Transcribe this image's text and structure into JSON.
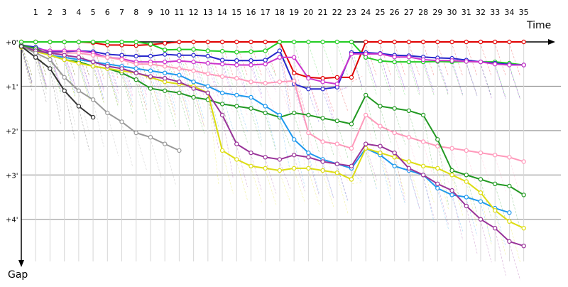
{
  "chart_data": {
    "type": "line",
    "xlabel": "Time",
    "ylabel": "Gap",
    "x_ticks": [
      "1",
      "2",
      "3",
      "4",
      "5",
      "6",
      "7",
      "8",
      "9",
      "10",
      "11",
      "12",
      "13",
      "14",
      "15",
      "16",
      "17",
      "18",
      "19",
      "20",
      "21",
      "22",
      "23",
      "24",
      "25",
      "26",
      "27",
      "28",
      "29",
      "30",
      "31",
      "32",
      "33",
      "34",
      "35"
    ],
    "y_ticks": [
      "+0'",
      "+1'",
      "+2'",
      "+3'",
      "+4'"
    ],
    "y_tick_values": [
      0,
      1,
      2,
      3,
      4
    ],
    "xlim": [
      0,
      36.6
    ],
    "ylim": [
      0,
      4.95
    ],
    "y_inverted": true,
    "grid": true,
    "series": [
      {
        "color": "#e00000",
        "values": [
          0,
          0,
          0,
          0,
          0,
          0.02,
          0.07,
          0.07,
          0.08,
          0.06,
          0.03,
          0,
          0,
          0,
          0,
          0,
          0,
          0,
          0,
          0.7,
          0.8,
          0.82,
          0.8,
          0.8,
          0,
          0,
          0,
          0,
          0,
          0,
          0,
          0,
          0,
          0,
          0,
          0
        ]
      },
      {
        "color": "#22cc22",
        "values": [
          0,
          0,
          0,
          0,
          0,
          0,
          0,
          0,
          0,
          0.05,
          0.18,
          0.17,
          0.17,
          0.2,
          0.21,
          0.23,
          0.22,
          0.2,
          0,
          0,
          0,
          0,
          0,
          0,
          0.35,
          0.43,
          0.45,
          0.45,
          0.45,
          0.44,
          0.45,
          0.44,
          0.45,
          0.45,
          0.48,
          0.52
        ]
      },
      {
        "color": "#2828cc",
        "values": [
          0.07,
          0.12,
          0.23,
          0.22,
          0.2,
          0.22,
          0.28,
          0.3,
          0.32,
          0.32,
          0.28,
          0.3,
          0.3,
          0.32,
          0.41,
          0.42,
          0.42,
          0.41,
          0.2,
          0.95,
          1.06,
          1.06,
          1.02,
          0.24,
          0.24,
          0.26,
          0.3,
          0.31,
          0.34,
          0.36,
          0.37,
          0.41,
          0.45,
          0.48,
          0.51,
          0.52
        ]
      },
      {
        "color": "#cc33cc",
        "values": [
          0.08,
          0.15,
          0.2,
          0.2,
          0.2,
          0.25,
          0.35,
          0.38,
          0.45,
          0.45,
          0.45,
          0.43,
          0.45,
          0.48,
          0.5,
          0.52,
          0.52,
          0.5,
          0.35,
          0.35,
          0.82,
          0.9,
          0.95,
          0.27,
          0.27,
          0.27,
          0.34,
          0.34,
          0.4,
          0.42,
          0.42,
          0.44,
          0.45,
          0.5,
          0.52,
          0.52
        ]
      },
      {
        "color": "#ff99bb",
        "values": [
          0.1,
          0.18,
          0.25,
          0.25,
          0.25,
          0.3,
          0.35,
          0.4,
          0.5,
          0.5,
          0.55,
          0.6,
          0.65,
          0.72,
          0.78,
          0.82,
          0.9,
          0.93,
          0.9,
          0.88,
          2.05,
          2.25,
          2.3,
          2.4,
          1.65,
          1.9,
          2.05,
          2.15,
          2.25,
          2.35,
          2.4,
          2.45,
          2.5,
          2.55,
          2.6,
          2.7
        ]
      },
      {
        "color": "#229922",
        "values": [
          0.07,
          0.15,
          0.3,
          0.4,
          0.45,
          0.55,
          0.6,
          0.7,
          0.85,
          1.05,
          1.1,
          1.15,
          1.25,
          1.3,
          1.4,
          1.45,
          1.5,
          1.6,
          1.7,
          1.6,
          1.65,
          1.72,
          1.78,
          1.85,
          1.2,
          1.45,
          1.5,
          1.55,
          1.65,
          2.2,
          2.9,
          3.0,
          3.1,
          3.2,
          3.25,
          3.45
        ]
      },
      {
        "color": "#1e99ee",
        "values": [
          0.1,
          0.2,
          0.3,
          0.35,
          0.4,
          0.45,
          0.5,
          0.55,
          0.6,
          0.65,
          0.7,
          0.75,
          0.9,
          1.0,
          1.15,
          1.2,
          1.25,
          1.45,
          1.65,
          2.2,
          2.5,
          2.65,
          2.75,
          2.85,
          2.4,
          2.55,
          2.8,
          2.9,
          3.0,
          3.3,
          3.45,
          3.5,
          3.6,
          3.75,
          3.85
        ]
      },
      {
        "color": "#dddd11",
        "values": [
          0.12,
          0.22,
          0.3,
          0.4,
          0.48,
          0.55,
          0.6,
          0.65,
          0.7,
          0.8,
          0.9,
          0.95,
          1.0,
          1.15,
          2.45,
          2.65,
          2.8,
          2.85,
          2.9,
          2.85,
          2.85,
          2.9,
          2.95,
          3.1,
          2.4,
          2.5,
          2.6,
          2.7,
          2.8,
          2.85,
          3.0,
          3.15,
          3.4,
          3.8,
          4.05,
          4.2
        ]
      },
      {
        "color": "#993399",
        "values": [
          0.1,
          0.2,
          0.25,
          0.3,
          0.35,
          0.45,
          0.55,
          0.6,
          0.7,
          0.78,
          0.82,
          0.9,
          1.05,
          1.15,
          1.65,
          2.3,
          2.5,
          2.6,
          2.65,
          2.55,
          2.6,
          2.7,
          2.75,
          2.8,
          2.3,
          2.35,
          2.5,
          2.85,
          3.0,
          3.2,
          3.35,
          3.7,
          4.0,
          4.2,
          4.5,
          4.6
        ]
      },
      {
        "color": "#999999",
        "values": [
          0.1,
          0.25,
          0.4,
          0.8,
          1.1,
          1.3,
          1.6,
          1.8,
          2.05,
          2.15,
          2.3,
          2.45
        ]
      },
      {
        "color": "#333333",
        "values": [
          0.1,
          0.35,
          0.6,
          1.1,
          1.45,
          1.7
        ]
      }
    ]
  }
}
